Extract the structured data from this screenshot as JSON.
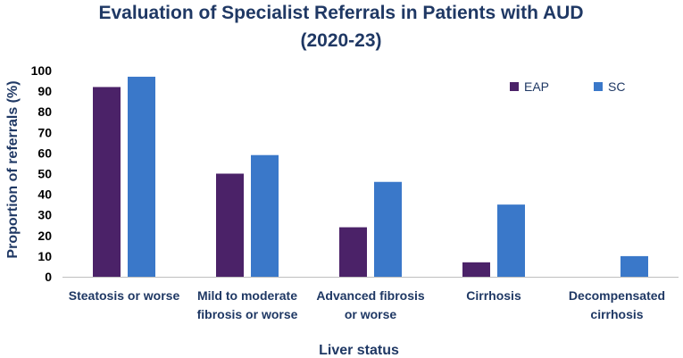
{
  "chart_data": {
    "type": "bar",
    "title_lines": [
      "Evaluation of Specialist Referrals in Patients with AUD",
      "(2020-23)"
    ],
    "xlabel": "Liver status",
    "ylabel": "Proportion of referrals (%)",
    "ylim": [
      0,
      100
    ],
    "yticks": [
      0,
      10,
      20,
      30,
      40,
      50,
      60,
      70,
      80,
      90,
      100
    ],
    "grid": false,
    "legend_position": "top-right",
    "categories": [
      [
        "Steatosis or worse"
      ],
      [
        "Mild to moderate",
        "fibrosis or worse"
      ],
      [
        "Advanced fibrosis",
        "or worse"
      ],
      [
        "Cirrhosis"
      ],
      [
        "Decompensated",
        "cirrhosis"
      ]
    ],
    "series": [
      {
        "name": "EAP",
        "color": "#4b2268",
        "values": [
          92,
          50,
          24,
          7,
          0
        ]
      },
      {
        "name": "SC",
        "color": "#3a78c9",
        "values": [
          97,
          59,
          46,
          35,
          10
        ]
      }
    ]
  }
}
